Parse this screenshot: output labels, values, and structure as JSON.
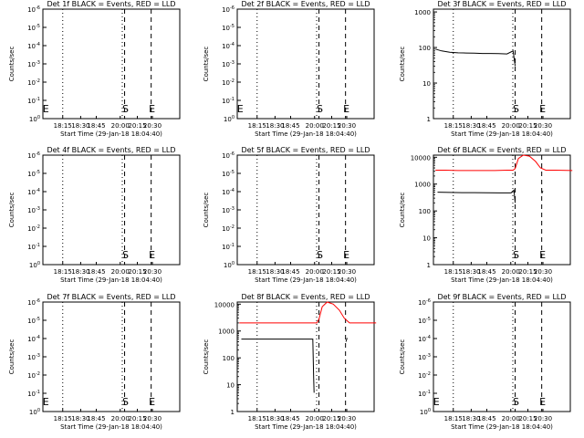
{
  "figure": {
    "background": "#ffffff"
  },
  "chart_data": [
    {
      "id": "det1f",
      "type": "line",
      "title": "Det 1f BLACK = Events, RED = LLD",
      "xlabel": "Start Time (29-Jan-18 18:04:40)",
      "ylabel": "Counts/sec",
      "xtick_labels": [
        "18:15",
        "18:30",
        "18:45",
        "20:00",
        "20:15",
        "20:30"
      ],
      "ytick_labels": [
        "10^0",
        "10^-1",
        "10^-2",
        "10^-3",
        "10^-4",
        "10^-5",
        "10^-6"
      ],
      "ytick_style": "exp",
      "ylog": false,
      "ylim": [
        0,
        6
      ],
      "markers": [
        {
          "label": "S",
          "x": 20.0
        },
        {
          "label": "E",
          "x": 20.65
        },
        {
          "label": "E",
          "x": 18.05
        }
      ],
      "series": []
    },
    {
      "id": "det2f",
      "type": "line",
      "title": "Det 2f BLACK = Events, RED = LLD",
      "xlabel": "Start Time (29-Jan-18 18:04:40)",
      "ylabel": "Counts/sec",
      "xtick_labels": [
        "18:15",
        "18:30",
        "18:45",
        "20:00",
        "20:15",
        "20:30"
      ],
      "ytick_labels": [
        "10^0",
        "10^-1",
        "10^-2",
        "10^-3",
        "10^-4",
        "10^-5",
        "10^-6"
      ],
      "ytick_style": "exp",
      "ylog": false,
      "ylim": [
        0,
        6
      ],
      "markers": [
        {
          "label": "S",
          "x": 20.0
        },
        {
          "label": "E",
          "x": 20.65
        },
        {
          "label": "E",
          "x": 18.05
        }
      ],
      "series": []
    },
    {
      "id": "det3f",
      "type": "line",
      "title": "Det 3f BLACK = Events, RED = LLD",
      "xlabel": "Start Time (29-Jan-18 18:04:40)",
      "ylabel": "Counts/sec",
      "xtick_labels": [
        "18:15",
        "18:30",
        "18:45",
        "20:00",
        "20:15",
        "20:30"
      ],
      "ytick_labels": [
        "1",
        "10",
        "100",
        "1000"
      ],
      "ytick_style": "plain",
      "ylog": true,
      "ylim": [
        1,
        1200
      ],
      "markers": [
        {
          "label": "S",
          "x": 20.0
        },
        {
          "label": "E",
          "x": 20.65
        }
      ],
      "series": [
        {
          "color": "#000000",
          "x": [
            18.05,
            18.2,
            18.4,
            18.6,
            18.8,
            19.0,
            19.2,
            19.4,
            19.6,
            19.8,
            19.95,
            20.0
          ],
          "y": [
            90,
            80,
            74,
            71,
            70,
            69,
            68,
            68,
            67,
            66,
            80,
            30
          ]
        },
        {
          "color": "#000000",
          "x": [
            20.65,
            20.66
          ],
          "y": [
            60,
            75
          ]
        }
      ]
    },
    {
      "id": "det4f",
      "type": "line",
      "title": "Det 4f BLACK = Events, RED = LLD",
      "xlabel": "Start Time (29-Jan-18 18:04:40)",
      "ylabel": "Counts/sec",
      "xtick_labels": [
        "18:15",
        "18:30",
        "18:45",
        "20:00",
        "20:15",
        "20:30"
      ],
      "ytick_labels": [
        "10^0",
        "10^-1",
        "10^-2",
        "10^-3",
        "10^-4",
        "10^-5",
        "10^-6"
      ],
      "ytick_style": "exp",
      "ylog": false,
      "ylim": [
        0,
        6
      ],
      "markers": [
        {
          "label": "S",
          "x": 20.0
        },
        {
          "label": "E",
          "x": 20.65
        }
      ],
      "series": []
    },
    {
      "id": "det5f",
      "type": "line",
      "title": "Det 5f BLACK = Events, RED = LLD",
      "xlabel": "Start Time (29-Jan-18 18:04:40)",
      "ylabel": "Counts/sec",
      "xtick_labels": [
        "18:15",
        "18:30",
        "18:45",
        "20:00",
        "20:15",
        "20:30"
      ],
      "ytick_labels": [
        "10^0",
        "10^-1",
        "10^-2",
        "10^-3",
        "10^-4",
        "10^-5",
        "10^-6"
      ],
      "ytick_style": "exp",
      "ylog": false,
      "ylim": [
        0,
        6
      ],
      "markers": [
        {
          "label": "S",
          "x": 20.0
        },
        {
          "label": "E",
          "x": 20.65
        }
      ],
      "series": []
    },
    {
      "id": "det6f",
      "type": "line",
      "title": "Det 6f BLACK = Events, RED = LLD",
      "xlabel": "Start Time (29-Jan-18 18:04:40)",
      "ylabel": "Counts/sec",
      "xtick_labels": [
        "18:15",
        "18:30",
        "18:45",
        "20:00",
        "20:15",
        "20:30"
      ],
      "ytick_labels": [
        "1",
        "10",
        "100",
        "1000",
        "10000"
      ],
      "ytick_style": "plain",
      "ylog": true,
      "ylim": [
        1,
        12000
      ],
      "markers": [
        {
          "label": "S",
          "x": 20.0
        },
        {
          "label": "E",
          "x": 20.65
        }
      ],
      "series": [
        {
          "color": "#ff0000",
          "x": [
            18.05,
            18.3,
            18.6,
            18.9,
            19.2,
            19.5,
            19.8,
            19.95,
            20.0,
            20.08,
            20.2,
            20.35,
            20.5,
            20.62,
            20.75,
            21.0,
            21.4
          ],
          "y": [
            3300,
            3300,
            3200,
            3200,
            3200,
            3200,
            3300,
            3300,
            3800,
            9000,
            12000,
            11000,
            7000,
            4000,
            3300,
            3300,
            3200
          ]
        },
        {
          "color": "#000000",
          "x": [
            18.1,
            18.4,
            18.7,
            19.0,
            19.3,
            19.6,
            19.9,
            19.97,
            20.0
          ],
          "y": [
            500,
            490,
            480,
            480,
            475,
            470,
            470,
            600,
            200
          ]
        },
        {
          "color": "#000000",
          "x": [
            20.65,
            20.68
          ],
          "y": [
            450,
            550
          ]
        }
      ]
    },
    {
      "id": "det7f",
      "type": "line",
      "title": "Det 7f BLACK = Events, RED = LLD",
      "xlabel": "Start Time (29-Jan-18 18:04:40)",
      "ylabel": "Counts/sec",
      "xtick_labels": [
        "18:15",
        "18:30",
        "18:45",
        "20:00",
        "20:15",
        "20:30"
      ],
      "ytick_labels": [
        "10^0",
        "10^-1",
        "10^-2",
        "10^-3",
        "10^-4",
        "10^-5",
        "10^-6"
      ],
      "ytick_style": "exp",
      "ylog": false,
      "ylim": [
        0,
        6
      ],
      "markers": [
        {
          "label": "S",
          "x": 20.0
        },
        {
          "label": "E",
          "x": 20.65
        },
        {
          "label": "E",
          "x": 18.05
        }
      ],
      "series": []
    },
    {
      "id": "det8f",
      "type": "line",
      "title": "Det 8f BLACK = Events, RED = LLD",
      "xlabel": "Start Time (29-Jan-18 18:04:40)",
      "ylabel": "Counts/sec",
      "xtick_labels": [
        "18:15",
        "18:30",
        "18:45",
        "20:00",
        "20:15",
        "20:30"
      ],
      "ytick_labels": [
        "1",
        "10",
        "100",
        "1000",
        "10000"
      ],
      "ytick_style": "plain",
      "ylog": true,
      "ylim": [
        1,
        12000
      ],
      "markers": [],
      "series": [
        {
          "color": "#ff0000",
          "x": [
            18.05,
            18.3,
            18.6,
            18.9,
            19.2,
            19.5,
            19.8,
            19.95,
            20.0,
            20.08,
            20.2,
            20.35,
            20.5,
            20.62,
            20.75,
            21.0,
            21.4
          ],
          "y": [
            2000,
            2000,
            2000,
            2000,
            2000,
            2000,
            2000,
            2000,
            2800,
            8000,
            12000,
            10000,
            6000,
            3000,
            2000,
            2000,
            2000
          ]
        },
        {
          "color": "#000000",
          "x": [
            18.1,
            18.4,
            18.7,
            19.0,
            19.3,
            19.6,
            19.85,
            19.87,
            19.88
          ],
          "y": [
            500,
            500,
            500,
            500,
            500,
            500,
            500,
            20,
            5
          ]
        },
        {
          "color": "#000000",
          "x": [
            20.66,
            20.69
          ],
          "y": [
            400,
            550
          ]
        }
      ]
    },
    {
      "id": "det9f",
      "type": "line",
      "title": "Det 9f BLACK = Events, RED = LLD",
      "xlabel": "Start Time (29-Jan-18 18:04:40)",
      "ylabel": "Counts/sec",
      "xtick_labels": [
        "18:15",
        "18:30",
        "18:45",
        "20:00",
        "20:15",
        "20:30"
      ],
      "ytick_labels": [
        "10^0",
        "10^-1",
        "10^-2",
        "10^-3",
        "10^-4",
        "10^-5",
        "10^-6"
      ],
      "ytick_style": "exp",
      "ylog": false,
      "ylim": [
        0,
        6
      ],
      "markers": [
        {
          "label": "S",
          "x": 20.0
        },
        {
          "label": "E",
          "x": 20.65
        },
        {
          "label": "E",
          "x": 18.05
        }
      ],
      "series": []
    }
  ]
}
